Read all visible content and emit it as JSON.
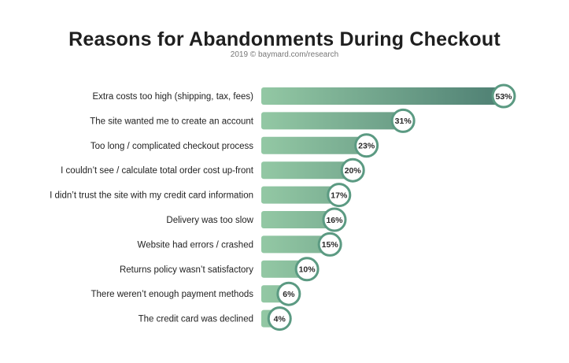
{
  "chart_data": {
    "type": "bar",
    "orientation": "horizontal",
    "title": "Reasons for Abandonments During Checkout",
    "subtitle": "2019 © baymard.com/research",
    "xlabel": "",
    "ylabel": "",
    "xlim": [
      0,
      53
    ],
    "grid": false,
    "legend": "none",
    "categories": [
      "Extra costs too high (shipping, tax, fees)",
      "The site wanted me to create an account",
      "Too long / complicated checkout process",
      "I couldn’t see / calculate total order cost up-front",
      "I didn’t trust the site with my credit card information",
      "Delivery was too slow",
      "Website had errors / crashed",
      "Returns policy wasn’t satisfactory",
      "There weren’t enough payment methods",
      "The credit card was declined"
    ],
    "values": [
      53,
      31,
      23,
      20,
      17,
      16,
      15,
      10,
      6,
      4
    ],
    "value_labels": [
      "53%",
      "31%",
      "23%",
      "20%",
      "17%",
      "16%",
      "15%",
      "10%",
      "6%",
      "4%"
    ],
    "colors": {
      "bar_start": "#93c8a4",
      "bar_end": "#4e7f73",
      "circle_stroke": "#5b9a82",
      "label_text": "#2a2a2a"
    }
  }
}
